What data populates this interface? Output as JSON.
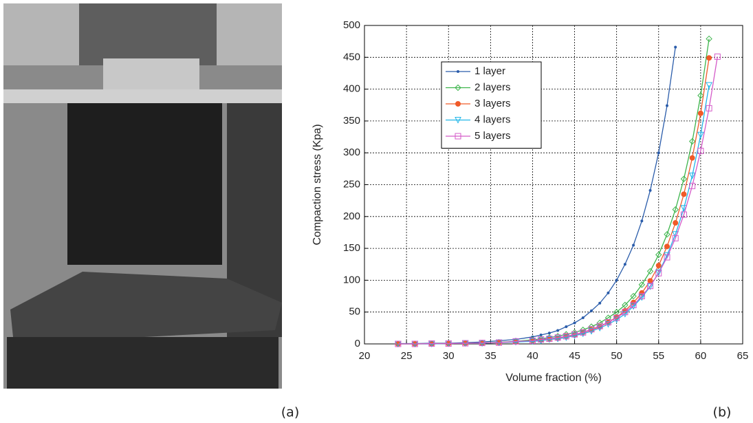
{
  "chart_data": {
    "type": "line",
    "xlabel": "Volume fraction (%)",
    "ylabel": "Compaction stress (Kpa)",
    "x": [
      24,
      26,
      28,
      30,
      32,
      34,
      36,
      38,
      40,
      41,
      42,
      43,
      44,
      45,
      46,
      47,
      48,
      49,
      50,
      51,
      52,
      53,
      54,
      55,
      56,
      57,
      58,
      59,
      60,
      61,
      62
    ],
    "series": [
      {
        "name": "1 layer",
        "color": "#2a5caa",
        "marker": "dot",
        "values": [
          0.5,
          0.5,
          1,
          1,
          2,
          3,
          5,
          7,
          11,
          14,
          17,
          21,
          27,
          33,
          41,
          52,
          64,
          80,
          100,
          125,
          155,
          193,
          241,
          300,
          374,
          466,
          null,
          null,
          null,
          null,
          null
        ]
      },
      {
        "name": "2 layers",
        "color": "#3cb44b",
        "marker": "diamond",
        "values": [
          0,
          0,
          0.5,
          0.5,
          1,
          1.5,
          2.5,
          4,
          6.5,
          8,
          10,
          12,
          15,
          18,
          22,
          27,
          33,
          41,
          50,
          61,
          75,
          93,
          114,
          140,
          172,
          211,
          259,
          318,
          390,
          479,
          null
        ]
      },
      {
        "name": "3 layers",
        "color": "#f05a28",
        "marker": "circle",
        "values": [
          0,
          0,
          0,
          0.5,
          1,
          1,
          2,
          3,
          5,
          6,
          8,
          9,
          12,
          14,
          18,
          22,
          27,
          34,
          42,
          52,
          65,
          80,
          99,
          123,
          153,
          190,
          235,
          292,
          362,
          449,
          null
        ]
      },
      {
        "name": "4 layers",
        "color": "#1fb5e8",
        "marker": "triangle",
        "values": [
          0,
          0,
          0,
          0.5,
          1,
          1,
          2,
          3,
          4,
          5,
          7,
          8,
          10,
          13,
          16,
          20,
          25,
          31,
          38,
          47,
          59,
          73,
          90,
          112,
          139,
          172,
          213,
          264,
          328,
          406,
          null
        ]
      },
      {
        "name": "5 layers",
        "color": "#d45ac8",
        "marker": "square",
        "values": [
          0,
          0,
          0.5,
          0.5,
          1,
          1.5,
          2,
          4,
          5,
          7,
          8,
          10,
          12,
          15,
          18,
          23,
          28,
          34,
          41,
          50,
          61,
          75,
          91,
          111,
          136,
          166,
          203,
          248,
          303,
          370,
          451
        ]
      }
    ],
    "xlim": [
      20,
      65
    ],
    "xticks": [
      20,
      25,
      30,
      35,
      40,
      45,
      50,
      55,
      60,
      65
    ],
    "ylim": [
      0,
      500
    ],
    "yticks": [
      0,
      50,
      100,
      150,
      200,
      250,
      300,
      350,
      400,
      450,
      500
    ],
    "grid": true,
    "legend": "upper left"
  },
  "captions": [
    "(a)",
    "(b)"
  ]
}
